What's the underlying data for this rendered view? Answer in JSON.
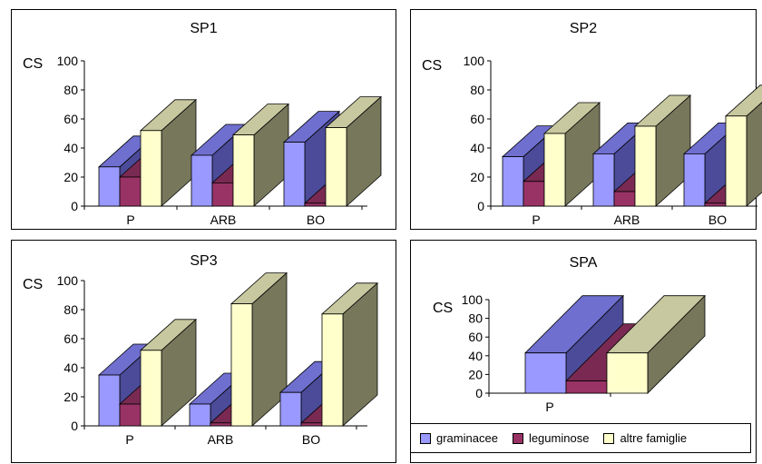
{
  "colors": {
    "graminacee": {
      "front": "#9999ff",
      "side": "#4b4b99",
      "top": "#6f6fcf"
    },
    "leguminose": {
      "front": "#993366",
      "side": "#5e1f3e",
      "top": "#7a2a52"
    },
    "altre famiglie": {
      "front": "#ffffcc",
      "side": "#77775c",
      "top": "#c8c8a0"
    }
  },
  "legend": [
    "graminacee",
    "leguminose",
    "altre famiglie"
  ],
  "chart_data": [
    {
      "type": "bar",
      "title": "SP1",
      "ylabel": "CS",
      "ylim": [
        0,
        100
      ],
      "yticks": [
        0,
        20,
        40,
        60,
        80,
        100
      ],
      "categories": [
        "P",
        "ARB",
        "BO"
      ],
      "series": [
        {
          "name": "graminacee",
          "values": [
            27,
            35,
            44
          ]
        },
        {
          "name": "leguminose",
          "values": [
            20,
            16,
            2
          ]
        },
        {
          "name": "altre famiglie",
          "values": [
            52,
            49,
            54
          ]
        }
      ]
    },
    {
      "type": "bar",
      "title": "SP2",
      "ylabel": "CS",
      "ylim": [
        0,
        100
      ],
      "yticks": [
        0,
        20,
        40,
        60,
        80,
        100
      ],
      "categories": [
        "P",
        "ARB",
        "BO"
      ],
      "series": [
        {
          "name": "graminacee",
          "values": [
            34,
            36,
            36
          ]
        },
        {
          "name": "leguminose",
          "values": [
            17,
            10,
            2
          ]
        },
        {
          "name": "altre famiglie",
          "values": [
            50,
            55,
            62
          ]
        }
      ]
    },
    {
      "type": "bar",
      "title": "SP3",
      "ylabel": "CS",
      "ylim": [
        0,
        100
      ],
      "yticks": [
        0,
        20,
        40,
        60,
        80,
        100
      ],
      "categories": [
        "P",
        "ARB",
        "BO"
      ],
      "series": [
        {
          "name": "graminacee",
          "values": [
            35,
            15,
            23
          ]
        },
        {
          "name": "leguminose",
          "values": [
            15,
            2,
            2
          ]
        },
        {
          "name": "altre famiglie",
          "values": [
            52,
            84,
            77
          ]
        }
      ]
    },
    {
      "type": "bar",
      "title": "SPA",
      "ylabel": "CS",
      "ylim": [
        0,
        100
      ],
      "yticks": [
        0,
        20,
        40,
        60,
        80,
        100
      ],
      "categories": [
        "P"
      ],
      "series": [
        {
          "name": "graminacee",
          "values": [
            43
          ]
        },
        {
          "name": "leguminose",
          "values": [
            13
          ]
        },
        {
          "name": "altre famiglie",
          "values": [
            43
          ]
        }
      ]
    }
  ]
}
